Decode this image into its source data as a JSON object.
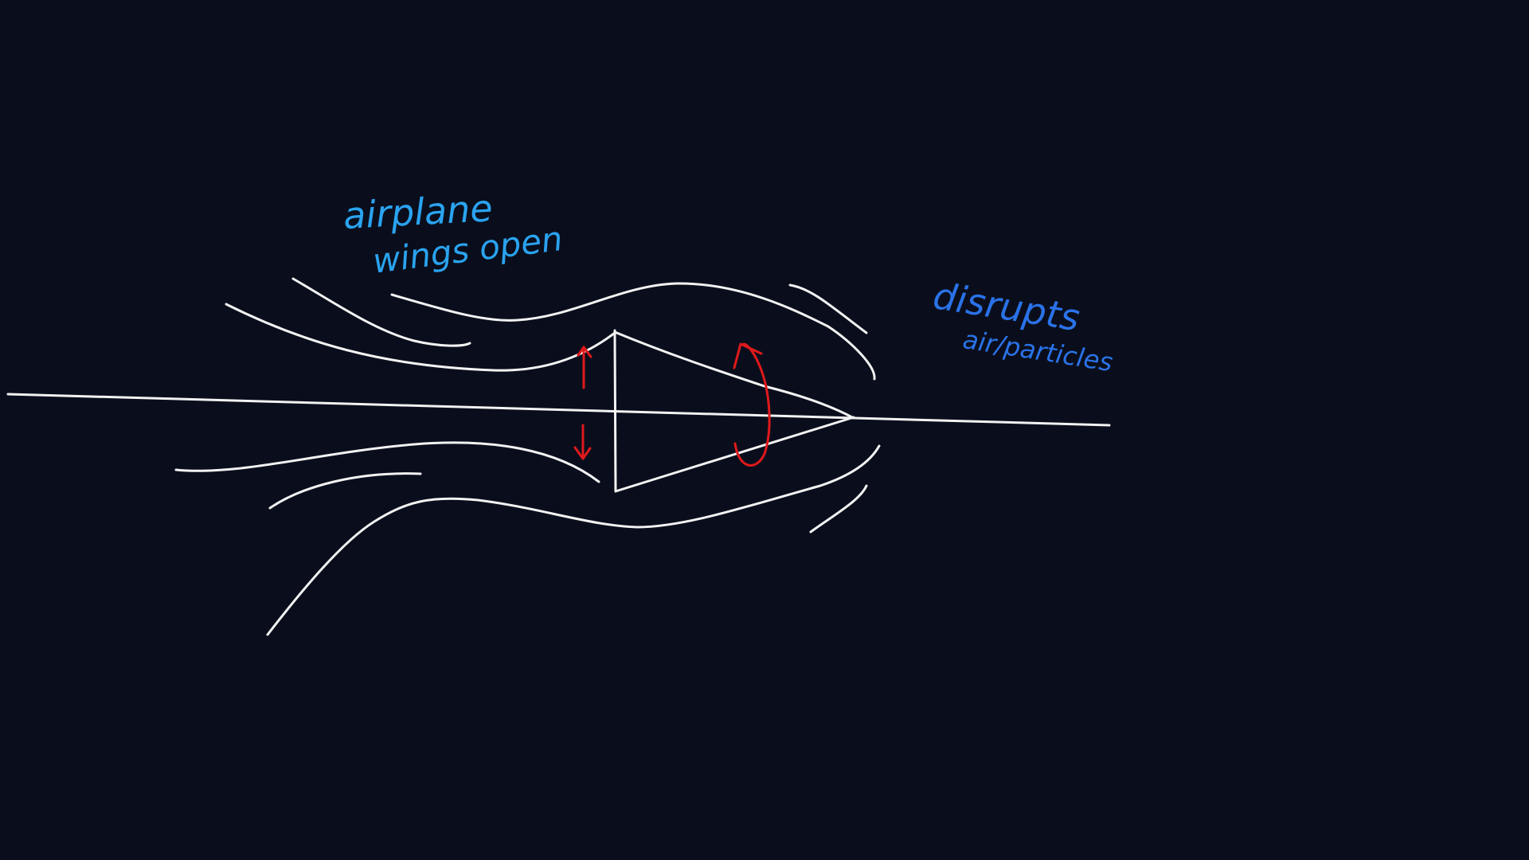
{
  "colors": {
    "background": "#0a0e1c",
    "stroke": "#f2f2f2",
    "annotation": "#e0191b",
    "label_light_blue": "#2aa3f0",
    "label_blue": "#2a72e8"
  },
  "labels": {
    "airplane": "airplane",
    "wings_open": "wings open",
    "disrupts": "disrupts",
    "air_particles": "air/particles"
  }
}
